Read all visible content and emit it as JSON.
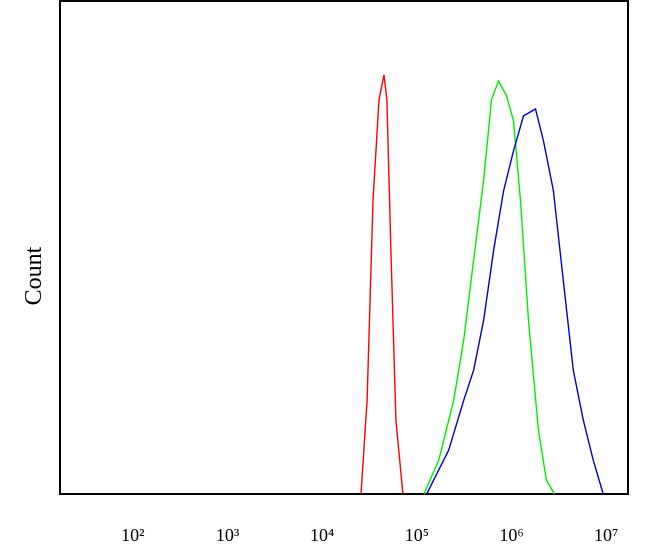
{
  "chart_data": {
    "type": "line",
    "ylabel": "Count",
    "log_x": true,
    "xlim": [
      17,
      17000000
    ],
    "ylim": [
      0,
      100
    ],
    "xticks": [
      {
        "value": 100,
        "label": "10²"
      },
      {
        "value": 1000,
        "label": "10³"
      },
      {
        "value": 10000,
        "label": "10⁴"
      },
      {
        "value": 100000,
        "label": "10⁵"
      },
      {
        "value": 1000000,
        "label": "10⁶"
      },
      {
        "value": 10000000,
        "label": "10⁷"
      }
    ],
    "series": [
      {
        "color": "#ff0000",
        "x": [
          25700,
          29800,
          34400,
          39800,
          45000,
          48300,
          53200,
          60100,
          71300
        ],
        "values": [
          0,
          19,
          59.5,
          80,
          85,
          80,
          49.4,
          15,
          0
        ]
      },
      {
        "color": "#00ee00",
        "x": [
          118600,
          170600,
          245000,
          312500,
          398000,
          507000,
          615000,
          729000,
          885000,
          1050000,
          1245000,
          1510000,
          1925000,
          2335000,
          2835000
        ],
        "values": [
          0,
          6.9,
          19,
          31.2,
          47.4,
          63.6,
          80,
          83.8,
          80.8,
          75.7,
          59.5,
          35.2,
          13,
          2.8,
          0
        ]
      },
      {
        "color": "#0000cc",
        "x": [
          127000,
          170600,
          217000,
          312500,
          398000,
          507000,
          647000,
          824000,
          1050000,
          1337000,
          1790000,
          2173000,
          2767000,
          3524000,
          4498000,
          5728000,
          7295000,
          9290000
        ],
        "values": [
          0,
          4.9,
          8.9,
          19,
          25.1,
          35.2,
          49.4,
          61.5,
          69.6,
          76.7,
          78.1,
          71.7,
          61.5,
          43.3,
          25.1,
          15,
          6.9,
          0
        ]
      }
    ]
  }
}
